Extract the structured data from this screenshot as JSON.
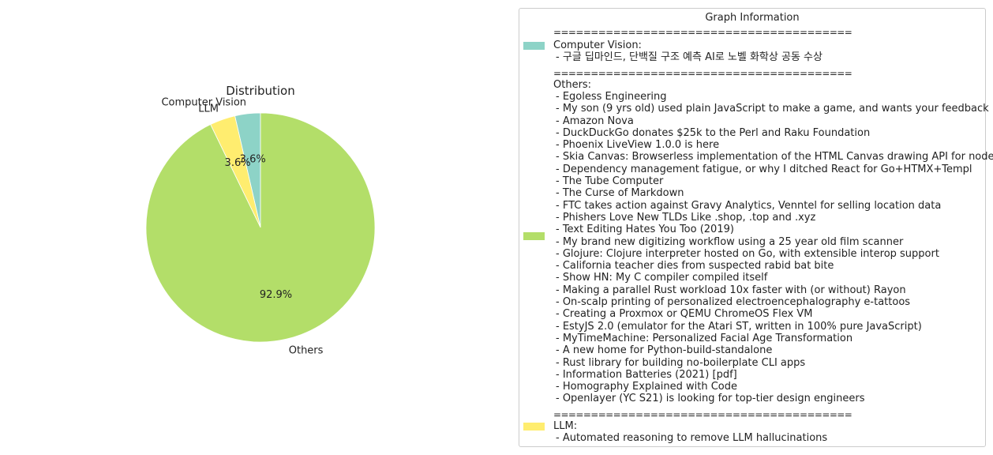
{
  "chart_data": {
    "type": "pie",
    "title": "Distribution",
    "slices": [
      {
        "label": "Computer Vision",
        "value": 3.6,
        "pct_label": "3.6%",
        "color": "#8dd3c7"
      },
      {
        "label": "LLM",
        "value": 3.6,
        "pct_label": "3.6%",
        "color": "#ffed6f"
      },
      {
        "label": "Others",
        "value": 92.9,
        "pct_label": "92.9%",
        "color": "#b3de69"
      }
    ],
    "start_angle_deg": 90,
    "direction": "counterclockwise",
    "legend_placement": "right"
  },
  "legend": {
    "title": "Graph Information",
    "separator": "========================================",
    "groups": [
      {
        "name": "Computer Vision:",
        "color": "#8dd3c7",
        "items": [
          "- 구글 딥마인드, 단백질 구조 예측 AI로 노벨 화학상 공동 수상"
        ]
      },
      {
        "name": "Others:",
        "color": "#b3de69",
        "items": [
          "- Egoless Engineering",
          "- My son (9 yrs old) used plain JavaScript to make a game, and wants your feedback",
          "- Amazon Nova",
          "- DuckDuckGo donates $25k to the Perl and Raku Foundation",
          "- Phoenix LiveView 1.0.0 is here",
          "- Skia Canvas: Browserless implementation of the HTML Canvas drawing API for node",
          "- Dependency management fatigue, or why I ditched React for Go+HTMX+Templ",
          "- The Tube Computer",
          "- The Curse of Markdown",
          "- FTC takes action against Gravy Analytics, Venntel for selling location data",
          "- Phishers Love New TLDs Like .shop, .top and .xyz",
          "- Text Editing Hates You Too (2019)",
          "- My brand new digitizing workflow using a 25 year old film scanner",
          "- Glojure: Clojure interpreter hosted on Go, with extensible interop support",
          "- California teacher dies from suspected rabid bat bite",
          "- Show HN: My C compiler compiled itself",
          "- Making a parallel Rust workload 10x faster with (or without) Rayon",
          "- On-scalp printing of personalized electroencephalography e-tattoos",
          "- Creating a Proxmox or QEMU ChromeOS Flex VM",
          "- EstyJS 2.0 (emulator for the Atari ST, written in 100% pure JavaScript)",
          "- MyTimeMachine: Personalized Facial Age Transformation",
          "- A new home for Python-build-standalone",
          "- Rust library for building no-boilerplate CLI apps",
          "- Information Batteries (2021) [pdf]",
          "- Homography Explained with Code",
          "- Openlayer (YC S21) is looking for top-tier design engineers"
        ]
      },
      {
        "name": "LLM:",
        "color": "#ffed6f",
        "items": [
          "- Automated reasoning to remove LLM hallucinations"
        ]
      }
    ]
  }
}
